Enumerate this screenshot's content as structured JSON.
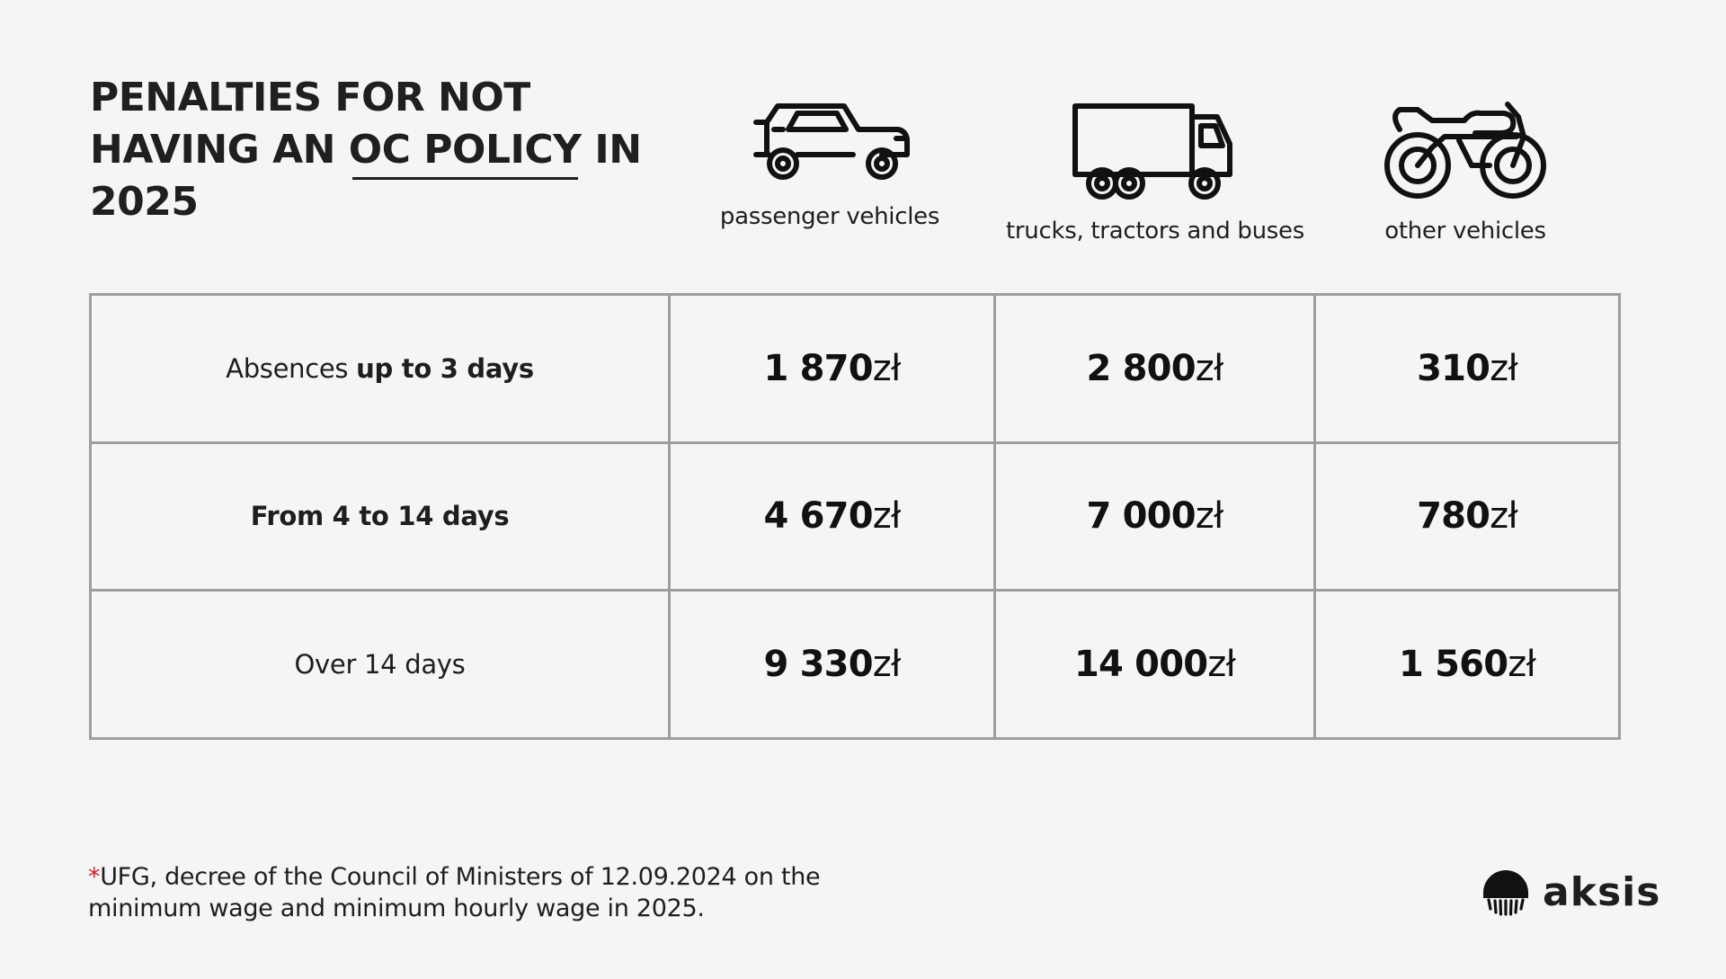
{
  "title": {
    "before": "PENALTIES FOR NOT HAVING AN ",
    "highlight": "OC POLICY",
    "after": " IN 2025"
  },
  "columns": [
    {
      "label": "passenger vehicles",
      "icon": "car-icon"
    },
    {
      "label": "trucks, tractors and buses",
      "icon": "truck-icon"
    },
    {
      "label": "other vehicles",
      "icon": "motorcycle-icon"
    }
  ],
  "rows": [
    {
      "label_plain": "Absences ",
      "label_bold": "up to 3 days",
      "values": [
        "1 870",
        "2 800",
        "310"
      ]
    },
    {
      "label_plain": "",
      "label_bold": "From 4 to 14 days",
      "values": [
        "4 670",
        "7 000",
        "780"
      ]
    },
    {
      "label_plain": "Over 14 days",
      "label_bold": "",
      "values": [
        "9 330",
        "14 000",
        "1 560"
      ]
    }
  ],
  "currency": "zł",
  "footnote": {
    "star": "*",
    "text": "UFG, decree of the Council of Ministers of 12.09.2024 on the minimum wage and minimum hourly wage in 2025."
  },
  "logo": {
    "text": "aksis",
    "icon": "aksis-logo-icon"
  },
  "colors": {
    "background": "#f5f5f5",
    "text": "#1e1e1e",
    "grid": "#9e9e9e",
    "accent": "#d0202a"
  }
}
